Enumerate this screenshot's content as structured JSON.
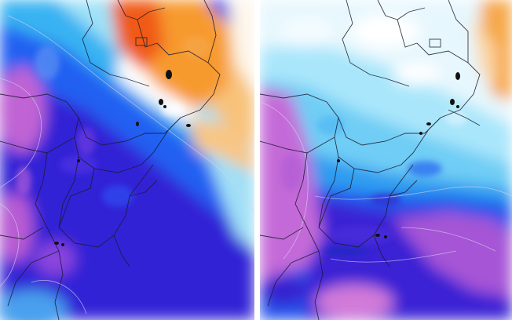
{
  "figure": {
    "panels": [
      {
        "id": "left",
        "description_key": "temperature-anomaly-map-left",
        "palette": {
          "warm_strong": "#f05a14",
          "warm": "#f79a2e",
          "warm_light": "#f8c27a",
          "neutral": "#ffffff",
          "cool_light": "#8fdcf5",
          "cool": "#2aa6ee",
          "cool_strong": "#1f5cf2",
          "deep": "#3a20d8",
          "extreme": "#c86ad6"
        }
      },
      {
        "id": "right",
        "description_key": "temperature-anomaly-map-right",
        "palette": {
          "warm": "#f6a84a",
          "neutral": "#ffffff",
          "cool_light": "#a9e6fb",
          "cool": "#35b5f2",
          "cool_strong": "#2060f0",
          "deep": "#3b1fd2",
          "extreme": "#d070dc"
        }
      }
    ],
    "overlay_colors": {
      "borders": "#1a1a2e",
      "contours": "#d8d0f0"
    }
  }
}
